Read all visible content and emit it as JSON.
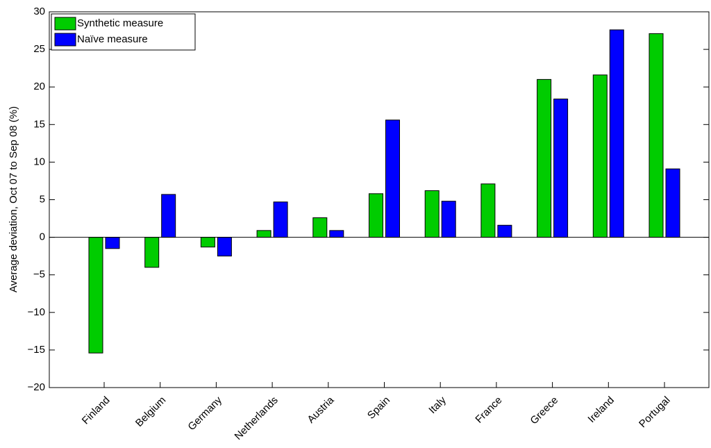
{
  "chart_data": {
    "type": "bar",
    "ylabel": "Average deviation, Oct 07 to Sep 08 (%)",
    "categories": [
      "Finland",
      "Belgium",
      "Germany",
      "Netherlands",
      "Austria",
      "Spain",
      "Italy",
      "France",
      "Greece",
      "Ireland",
      "Portugal"
    ],
    "series": [
      {
        "name": "Synthetic measure",
        "color": "#00cc00",
        "values": [
          -15.4,
          -4.0,
          -1.3,
          0.9,
          2.6,
          5.8,
          6.2,
          7.1,
          21.0,
          21.6,
          27.1
        ]
      },
      {
        "name": "Naïve measure",
        "color": "#0000ff",
        "values": [
          -1.5,
          5.7,
          -2.5,
          4.7,
          0.9,
          15.6,
          4.8,
          1.6,
          18.4,
          27.6,
          9.1
        ]
      }
    ],
    "ylim": [
      -20,
      30
    ],
    "yticks": [
      {
        "value": -20,
        "label": "−20"
      },
      {
        "value": -15,
        "label": "−15"
      },
      {
        "value": -10,
        "label": "−10"
      },
      {
        "value": -5,
        "label": "−5"
      },
      0,
      5,
      10,
      15,
      20,
      25,
      30
    ],
    "legend": "upper left"
  }
}
